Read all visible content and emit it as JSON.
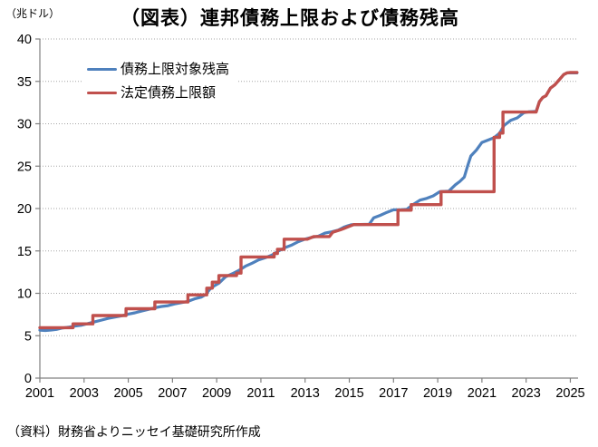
{
  "page": {
    "unit_label": "（兆ドル）",
    "title": "（図表）連邦債務上限および債務残高",
    "source_note": "（資料）財務省よりニッセイ基礎研究所作成"
  },
  "legend": {
    "items": [
      {
        "label": "債務上限対象残高",
        "color": "#4F81BD"
      },
      {
        "label": "法定債務上限額",
        "color": "#C0504D"
      }
    ]
  },
  "chart_data": {
    "type": "line",
    "title": "（図表）連邦債務上限および債務残高",
    "ylabel": "（兆ドル）",
    "xlabel": "",
    "xlim": [
      2001,
      2025.35
    ],
    "ylim": [
      0,
      40
    ],
    "y_ticks": [
      0,
      5,
      10,
      15,
      20,
      25,
      30,
      35,
      40
    ],
    "x_ticks": [
      2001,
      2003,
      2005,
      2007,
      2009,
      2011,
      2013,
      2015,
      2017,
      2019,
      2021,
      2023,
      2025
    ],
    "grid": "horizontal-dotted",
    "legend_position": "upper-left-inside",
    "axis_color": "#808080",
    "grid_color": "#a6a6a6",
    "series": [
      {
        "name": "債務上限対象残高",
        "color": "#4F81BD",
        "width": 3.2,
        "values": [
          [
            2001.0,
            5.66
          ],
          [
            2001.25,
            5.62
          ],
          [
            2001.5,
            5.67
          ],
          [
            2001.75,
            5.74
          ],
          [
            2002.0,
            5.9
          ],
          [
            2002.3,
            6.0
          ],
          [
            2002.6,
            6.15
          ],
          [
            2002.9,
            6.25
          ],
          [
            2003.2,
            6.45
          ],
          [
            2003.5,
            6.65
          ],
          [
            2003.8,
            6.85
          ],
          [
            2004.1,
            7.05
          ],
          [
            2004.4,
            7.2
          ],
          [
            2004.7,
            7.35
          ],
          [
            2005.0,
            7.55
          ],
          [
            2005.3,
            7.7
          ],
          [
            2005.6,
            7.9
          ],
          [
            2005.9,
            8.1
          ],
          [
            2006.2,
            8.3
          ],
          [
            2006.5,
            8.45
          ],
          [
            2006.8,
            8.55
          ],
          [
            2007.1,
            8.75
          ],
          [
            2007.4,
            8.9
          ],
          [
            2007.7,
            9.05
          ],
          [
            2008.0,
            9.35
          ],
          [
            2008.3,
            9.55
          ],
          [
            2008.5,
            9.85
          ],
          [
            2008.7,
            10.5
          ],
          [
            2008.9,
            10.9
          ],
          [
            2009.1,
            11.2
          ],
          [
            2009.4,
            11.95
          ],
          [
            2009.7,
            12.3
          ],
          [
            2010.0,
            12.7
          ],
          [
            2010.3,
            13.2
          ],
          [
            2010.6,
            13.55
          ],
          [
            2010.9,
            13.95
          ],
          [
            2011.2,
            14.2
          ],
          [
            2011.5,
            14.5
          ],
          [
            2011.8,
            15.0
          ],
          [
            2012.1,
            15.4
          ],
          [
            2012.4,
            15.7
          ],
          [
            2012.7,
            16.1
          ],
          [
            2013.0,
            16.4
          ],
          [
            2013.3,
            16.6
          ],
          [
            2013.6,
            16.75
          ],
          [
            2013.9,
            17.1
          ],
          [
            2014.2,
            17.25
          ],
          [
            2014.5,
            17.45
          ],
          [
            2014.8,
            17.85
          ],
          [
            2015.1,
            18.1
          ],
          [
            2015.5,
            18.12
          ],
          [
            2015.9,
            18.15
          ],
          [
            2016.1,
            18.9
          ],
          [
            2016.4,
            19.2
          ],
          [
            2016.7,
            19.55
          ],
          [
            2017.0,
            19.85
          ],
          [
            2017.3,
            19.85
          ],
          [
            2017.6,
            19.9
          ],
          [
            2017.9,
            20.5
          ],
          [
            2018.2,
            21.0
          ],
          [
            2018.5,
            21.2
          ],
          [
            2018.8,
            21.5
          ],
          [
            2019.1,
            22.0
          ],
          [
            2019.5,
            22.05
          ],
          [
            2019.8,
            22.8
          ],
          [
            2020.0,
            23.2
          ],
          [
            2020.2,
            23.7
          ],
          [
            2020.35,
            25.0
          ],
          [
            2020.5,
            26.2
          ],
          [
            2020.75,
            26.9
          ],
          [
            2021.0,
            27.8
          ],
          [
            2021.25,
            28.05
          ],
          [
            2021.55,
            28.35
          ],
          [
            2021.8,
            28.9
          ],
          [
            2022.0,
            29.8
          ],
          [
            2022.3,
            30.4
          ],
          [
            2022.6,
            30.7
          ],
          [
            2022.9,
            31.3
          ],
          [
            2023.1,
            31.4
          ],
          [
            2023.45,
            31.45
          ],
          [
            2023.6,
            32.6
          ],
          [
            2023.75,
            33.1
          ],
          [
            2023.9,
            33.3
          ],
          [
            2024.1,
            34.2
          ],
          [
            2024.3,
            34.6
          ],
          [
            2024.5,
            35.2
          ],
          [
            2024.7,
            35.8
          ],
          [
            2024.85,
            36.0
          ],
          [
            2025.3,
            36.0
          ]
        ]
      },
      {
        "name": "法定債務上限額",
        "color": "#C0504D",
        "width": 3.4,
        "values": [
          [
            2001.0,
            5.95
          ],
          [
            2002.5,
            5.95
          ],
          [
            2002.5,
            6.4
          ],
          [
            2003.4,
            6.4
          ],
          [
            2003.4,
            7.38
          ],
          [
            2004.9,
            7.38
          ],
          [
            2004.9,
            8.18
          ],
          [
            2006.2,
            8.18
          ],
          [
            2006.2,
            8.97
          ],
          [
            2007.7,
            8.97
          ],
          [
            2007.7,
            9.82
          ],
          [
            2008.55,
            9.82
          ],
          [
            2008.55,
            10.61
          ],
          [
            2008.8,
            10.61
          ],
          [
            2008.8,
            11.32
          ],
          [
            2009.1,
            11.32
          ],
          [
            2009.1,
            12.1
          ],
          [
            2009.9,
            12.1
          ],
          [
            2009.9,
            12.39
          ],
          [
            2010.1,
            12.39
          ],
          [
            2010.1,
            14.29
          ],
          [
            2011.6,
            14.29
          ],
          [
            2011.6,
            14.69
          ],
          [
            2011.75,
            14.69
          ],
          [
            2011.75,
            15.19
          ],
          [
            2012.05,
            15.19
          ],
          [
            2012.05,
            16.39
          ],
          [
            2013.1,
            16.39
          ],
          [
            2013.25,
            16.55
          ],
          [
            2013.4,
            16.7
          ],
          [
            2014.1,
            16.7
          ],
          [
            2014.25,
            17.21
          ],
          [
            2014.6,
            17.5
          ],
          [
            2014.9,
            17.8
          ],
          [
            2015.2,
            18.11
          ],
          [
            2017.2,
            18.11
          ],
          [
            2017.2,
            19.81
          ],
          [
            2017.8,
            19.81
          ],
          [
            2017.8,
            20.46
          ],
          [
            2019.15,
            20.46
          ],
          [
            2019.15,
            21.99
          ],
          [
            2021.55,
            21.99
          ],
          [
            2021.55,
            28.4
          ],
          [
            2021.8,
            28.4
          ],
          [
            2021.8,
            28.9
          ],
          [
            2021.95,
            28.9
          ],
          [
            2021.95,
            31.38
          ],
          [
            2023.45,
            31.38
          ],
          [
            2023.6,
            32.6
          ],
          [
            2023.75,
            33.1
          ],
          [
            2023.9,
            33.3
          ],
          [
            2024.1,
            34.2
          ],
          [
            2024.3,
            34.6
          ],
          [
            2024.5,
            35.2
          ],
          [
            2024.7,
            35.8
          ],
          [
            2024.85,
            36.0
          ],
          [
            2025.0,
            36.05
          ],
          [
            2025.3,
            36.05
          ]
        ]
      }
    ]
  }
}
